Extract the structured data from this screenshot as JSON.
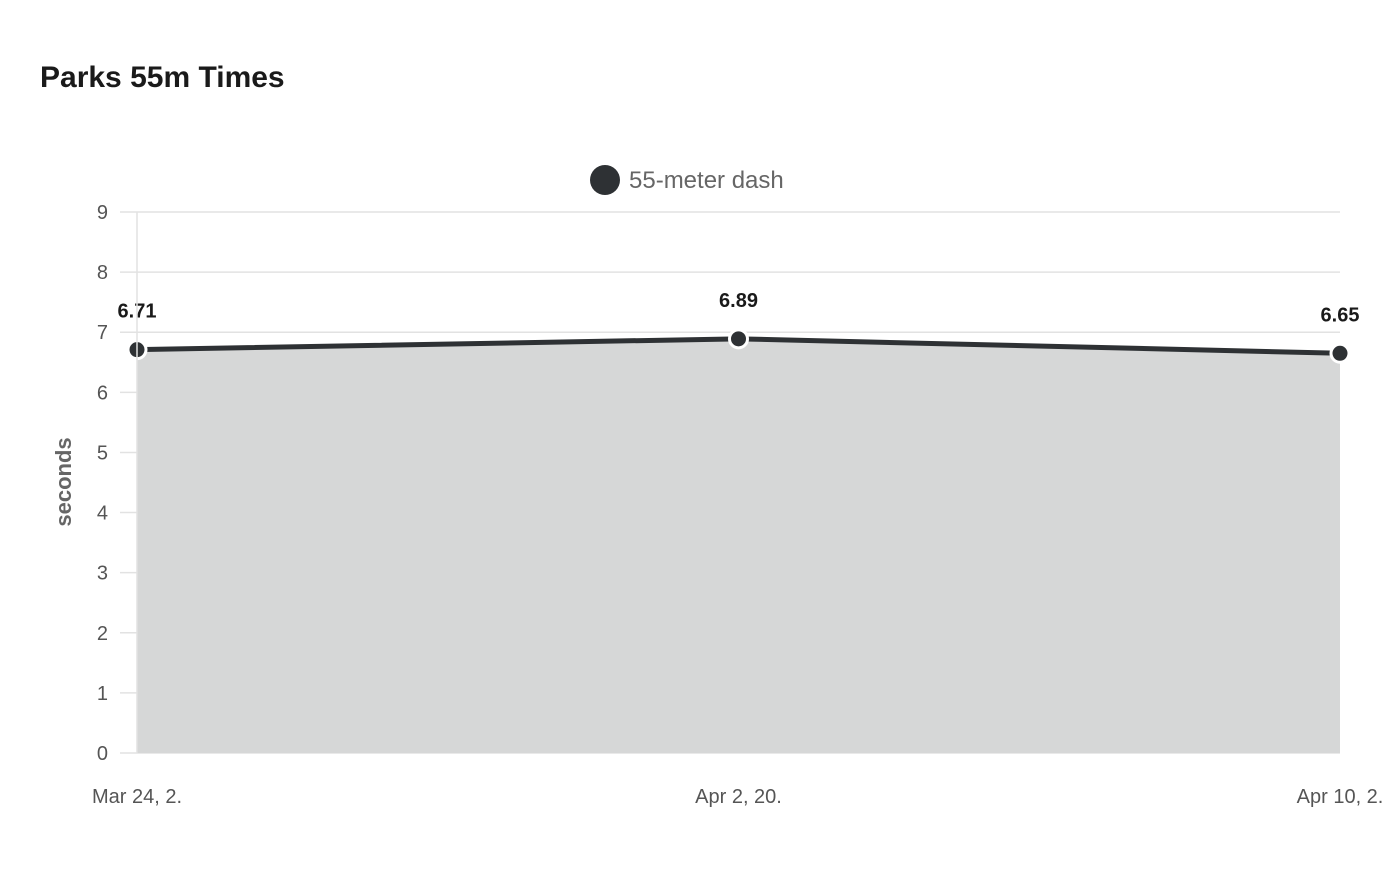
{
  "title": "Parks 55m Times",
  "colors": {
    "series": "#2e3134",
    "area_fill": "#d6d7d7",
    "grid": "#e2e2e2",
    "point_stroke": "#ffffff"
  },
  "chart_data": {
    "type": "area",
    "title": "Parks 55m Times",
    "ylabel": "seconds",
    "xlabel": "",
    "categories": [
      "Mar 24, 2.",
      "Apr 2, 20.",
      "Apr 10, 2."
    ],
    "series": [
      {
        "name": "55-meter dash",
        "values": [
          6.71,
          6.89,
          6.65
        ]
      }
    ],
    "ylim": [
      0,
      9
    ],
    "yticks": [
      0,
      1,
      2,
      3,
      4,
      5,
      6,
      7,
      8,
      9
    ],
    "grid": true,
    "legend_position": "top-center",
    "data_labels": true
  }
}
